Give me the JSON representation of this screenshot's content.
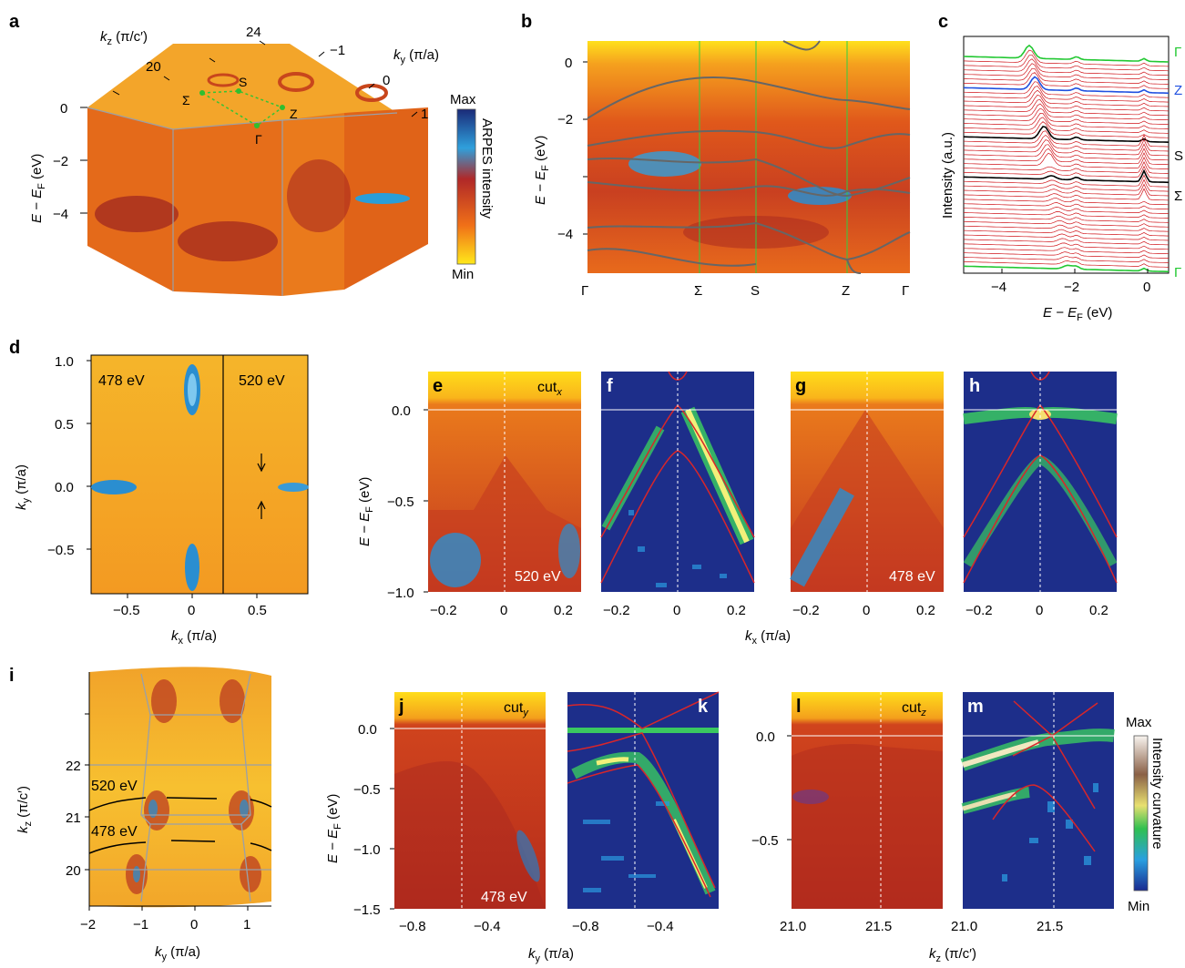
{
  "panels": {
    "a": "a",
    "b": "b",
    "c": "c",
    "d": "d",
    "e": "e",
    "f": "f",
    "g": "g",
    "h": "h",
    "i": "i",
    "j": "j",
    "k": "k",
    "l": "l",
    "m": "m"
  },
  "a": {
    "ylabel": "E − E",
    "ylabel_sub": "F",
    "ylabel_unit": " (eV)",
    "yticks": [
      "0",
      "−2",
      "−4"
    ],
    "kz_label": "k",
    "kz_sub": "z",
    "kz_unit": " (π/c′)",
    "kz_ticks": [
      "20",
      "24"
    ],
    "ky_label": "k",
    "ky_sub": "y",
    "ky_unit": " (π/a)",
    "ky_ticks": [
      "−1",
      "0",
      "1"
    ],
    "points": [
      "Σ",
      "S",
      "Z",
      "Γ"
    ],
    "colorbar": {
      "max": "Max",
      "min": "Min",
      "label": "ARPES intensity"
    }
  },
  "b": {
    "ylabel": "E − E",
    "ylabel_sub": "F",
    "ylabel_unit": " (eV)",
    "yticks": [
      "0",
      "−2",
      "−4"
    ],
    "xpoints": [
      "Γ",
      "Σ",
      "S",
      "Z",
      "Γ"
    ]
  },
  "c": {
    "ylabel": "Intensity (a.u.)",
    "xlabel": "E − E",
    "xlabel_sub": "F",
    "xlabel_unit": " (eV)",
    "xticks": [
      "−4",
      "−2",
      "0"
    ],
    "right_labels": [
      "Γ",
      "Z",
      "S",
      "Σ",
      "Γ"
    ]
  },
  "d": {
    "ylabel": "k",
    "ylabel_sub": "y",
    "ylabel_unit": " (π/a)",
    "yticks": [
      "1.0",
      "0.5",
      "0.0",
      "−0.5"
    ],
    "xlabel": "k",
    "xlabel_sub": "x",
    "xlabel_unit": " (π/a)",
    "xticks": [
      "−0.5",
      "0",
      "0.5"
    ],
    "left_energy": "478 eV",
    "right_energy": "520 eV"
  },
  "efgh": {
    "ylabel": "E − E",
    "ylabel_sub": "F",
    "ylabel_unit": " (eV)",
    "yticks": [
      "0.0",
      "−0.5",
      "−1.0"
    ],
    "xticks": [
      "−0.2",
      "0",
      "0.2"
    ],
    "xlabel": "k",
    "xlabel_sub": "x",
    "xlabel_unit": " (π/a)",
    "cut_label": "cut",
    "cut_sub": "x",
    "e_energy": "520 eV",
    "g_energy": "478 eV"
  },
  "i": {
    "ylabel": "k",
    "ylabel_sub": "z",
    "ylabel_unit": " (π/c′)",
    "yticks": [
      "22",
      "21",
      "20"
    ],
    "xlabel": "k",
    "xlabel_sub": "y",
    "xlabel_unit": " (π/a)",
    "xticks": [
      "−2",
      "−1",
      "0",
      "1"
    ],
    "energy_top": "520 eV",
    "energy_bottom": "478 eV"
  },
  "jk": {
    "ylabel": "E − E",
    "ylabel_sub": "F",
    "ylabel_unit": " (eV)",
    "yticks": [
      "0.0",
      "−0.5",
      "−1.0",
      "−1.5"
    ],
    "xticks": [
      "−0.8",
      "−0.4"
    ],
    "xlabel": "k",
    "xlabel_sub": "y",
    "xlabel_unit": " (π/a)",
    "cut_label": "cut",
    "cut_sub": "y",
    "j_energy": "478 eV"
  },
  "lm": {
    "yticks": [
      "0.0",
      "−0.5"
    ],
    "xticks": [
      "21.0",
      "21.5"
    ],
    "xlabel": "k",
    "xlabel_sub": "z",
    "xlabel_unit": " (π/c′)",
    "cut_label": "cut",
    "cut_sub": "z",
    "colorbar": {
      "max": "Max",
      "min": "Min",
      "label": "Intensity curvature"
    }
  },
  "colors": {
    "orange": "#ef7a1a",
    "red": "#b8321b",
    "yellow": "#ffe21a",
    "navy": "#1d2e8a",
    "cyan": "#3fb8e8",
    "green": "#22c832",
    "blue": "#2050e0",
    "band": "#606060"
  }
}
